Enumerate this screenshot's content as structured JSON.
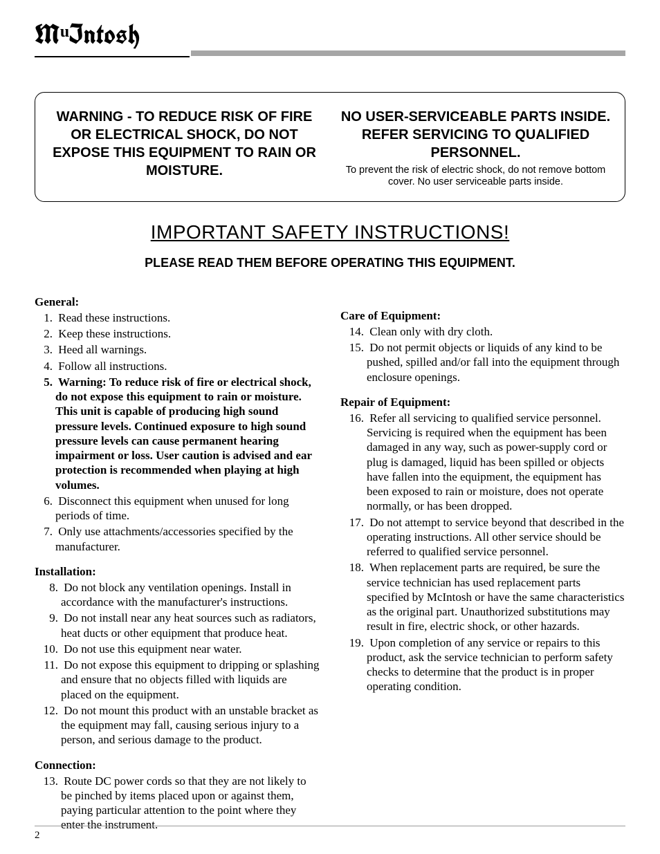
{
  "brand": "McIntosh",
  "header_rule_color": "#a6a6a6",
  "warning_box": {
    "left": "WARNING - TO REDUCE RISK OF FIRE OR ELECTRICAL SHOCK, DO NOT EXPOSE THIS EQUIPMENT TO RAIN OR MOISTURE.",
    "right_heading": "NO USER-SERVICEABLE PARTS INSIDE. REFER SERVICING TO QUALIFIED PERSONNEL.",
    "right_sub": "To prevent the risk of electric shock, do not remove bottom cover. No user serviceable parts inside."
  },
  "main_title": "IMPORTANT SAFETY INSTRUCTIONS!",
  "sub_title": "PLEASE READ THEM BEFORE OPERATING THIS EQUIPMENT.",
  "sections": {
    "general": {
      "heading": "General:",
      "items": [
        {
          "n": "1.",
          "t": "Read these instructions."
        },
        {
          "n": "2.",
          "t": "Keep these instructions."
        },
        {
          "n": "3.",
          "t": "Heed all warnings."
        },
        {
          "n": "4.",
          "t": "Follow all instructions."
        },
        {
          "n": "5.",
          "t": "Warning: To reduce risk of fire or electrical shock, do not expose this equipment to rain or moisture. This unit is capable of producing high sound pressure levels. Continued exposure to high sound pressure levels can cause permanent hearing impairment or loss. User caution is advised and ear protection is recommended when playing at high volumes.",
          "bold": true
        },
        {
          "n": "6.",
          "t": "Disconnect this equipment when unused for long periods of time."
        },
        {
          "n": "7.",
          "t": "Only use attachments/accessories specified by the manufacturer."
        }
      ]
    },
    "installation": {
      "heading": "Installation:",
      "items": [
        {
          "n": "8.",
          "t": "Do not block any ventilation openings. Install in accordance with the manufacturer's instructions."
        },
        {
          "n": "9.",
          "t": "Do not install near any heat sources such as radiators, heat ducts or other equipment that produce heat."
        },
        {
          "n": "10.",
          "t": "Do not use this equipment near water."
        },
        {
          "n": "11.",
          "t": "Do not expose this equipment to dripping or splashing and ensure that no objects filled with liquids are placed on the equipment."
        },
        {
          "n": "12.",
          "t": "Do not mount this product with an unstable bracket as the equipment may fall, causing serious injury to a person, and serious damage to the product."
        }
      ]
    },
    "connection": {
      "heading": "Connection:",
      "items": [
        {
          "n": "13.",
          "t": "Route DC power cords so that they are not likely to be pinched by items placed upon or against them, paying particular attention to the point where they enter the instrument."
        }
      ]
    },
    "care": {
      "heading": "Care of Equipment:",
      "items": [
        {
          "n": "14.",
          "t": "Clean only with dry cloth."
        },
        {
          "n": "15.",
          "t": "Do not permit objects or liquids of any kind to be pushed, spilled and/or fall into the equipment through enclosure openings."
        }
      ]
    },
    "repair": {
      "heading": "Repair of Equipment:",
      "items": [
        {
          "n": "16.",
          "t": "Refer all servicing to qualified service personnel. Servicing is required when the equipment has been damaged in any way, such as power-supply cord or plug is damaged, liquid has been spilled or objects have fallen into the equipment, the equipment has been exposed to rain or moisture, does not operate normally, or has been dropped."
        },
        {
          "n": "17.",
          "t": "Do not attempt to service beyond that described in the operating instructions. All other service should be referred to qualified service personnel."
        },
        {
          "n": "18.",
          "t": "When replacement parts are required, be sure the service technician has used replacement parts specified by McIntosh or have the same characteristics as the original part. Unauthorized substitutions may result in fire, electric shock, or other hazards."
        },
        {
          "n": "19.",
          "t": "Upon completion of any service or repairs to this product, ask the service technician to perform safety checks to determine that the product is in proper operating condition."
        }
      ]
    }
  },
  "page_number": "2"
}
